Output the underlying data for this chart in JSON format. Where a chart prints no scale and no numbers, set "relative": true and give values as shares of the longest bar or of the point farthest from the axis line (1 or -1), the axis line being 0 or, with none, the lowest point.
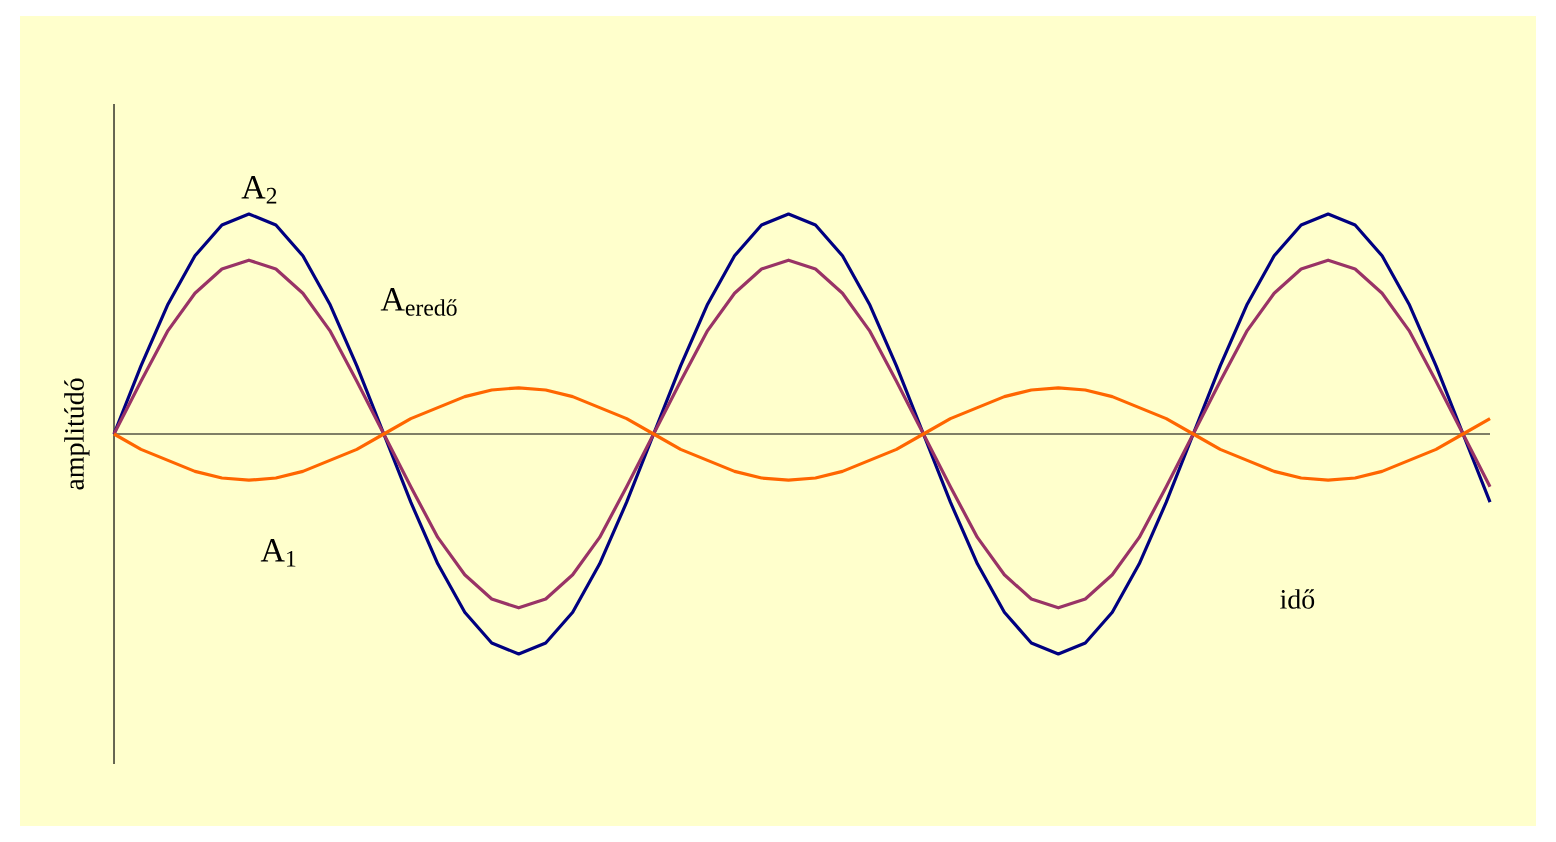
{
  "chart_data": {
    "type": "line",
    "relative": true,
    "xlabel": "idő",
    "ylabel": "amplitúdó",
    "categories": [
      null,
      null,
      null,
      null,
      null,
      null,
      null,
      null,
      null,
      null,
      null,
      null,
      null,
      null,
      null,
      null,
      null,
      null,
      null,
      null,
      null,
      null,
      null,
      null,
      null,
      null,
      null,
      null,
      null,
      null,
      null,
      null,
      null,
      null,
      null,
      null,
      null,
      null,
      null,
      null,
      null,
      null,
      null,
      null,
      null,
      null,
      null,
      null,
      null,
      null,
      null,
      null
    ],
    "series": [
      {
        "name": "A$_{2}$",
        "color": "#000080",
        "values": [
          0,
          0.31,
          0.59,
          0.81,
          0.95,
          1,
          0.95,
          0.81,
          0.59,
          0.31,
          0,
          -0.31,
          -0.59,
          -0.81,
          -0.95,
          -1,
          -0.95,
          -0.81,
          -0.59,
          -0.31,
          0,
          0.31,
          0.59,
          0.81,
          0.95,
          1,
          0.95,
          0.81,
          0.59,
          0.31,
          0,
          -0.31,
          -0.59,
          -0.81,
          -0.95,
          -1,
          -0.95,
          -0.81,
          -0.59,
          -0.31,
          0,
          0.31,
          0.59,
          0.81,
          0.95,
          1,
          0.95,
          0.81,
          0.59,
          0.31,
          0,
          -0.31
        ]
      },
      {
        "name": "A$_{eredő}$",
        "color": "#993366",
        "values": [
          0,
          0.24,
          0.47,
          0.64,
          0.75,
          0.79,
          0.75,
          0.64,
          0.47,
          0.24,
          0,
          -0.24,
          -0.47,
          -0.64,
          -0.75,
          -0.79,
          -0.75,
          -0.64,
          -0.47,
          -0.24,
          0,
          0.24,
          0.47,
          0.64,
          0.75,
          0.79,
          0.75,
          0.64,
          0.47,
          0.24,
          0,
          -0.24,
          -0.47,
          -0.64,
          -0.75,
          -0.79,
          -0.75,
          -0.64,
          -0.47,
          -0.24,
          0,
          0.24,
          0.47,
          0.64,
          0.75,
          0.79,
          0.75,
          0.64,
          0.47,
          0.24,
          0,
          -0.24
        ]
      },
      {
        "name": "A$_{1}$",
        "color": "#ff6600",
        "values": [
          0,
          -0.07,
          -0.12,
          -0.17,
          -0.2,
          -0.21,
          -0.2,
          -0.17,
          -0.12,
          -0.07,
          0,
          0.07,
          0.12,
          0.17,
          0.2,
          0.21,
          0.2,
          0.17,
          0.12,
          0.07,
          0,
          -0.07,
          -0.12,
          -0.17,
          -0.2,
          -0.21,
          -0.2,
          -0.17,
          -0.12,
          -0.07,
          0,
          0.07,
          0.12,
          0.17,
          0.2,
          0.21,
          0.2,
          0.17,
          0.12,
          0.07,
          0,
          -0.07,
          -0.12,
          -0.17,
          -0.2,
          -0.21,
          -0.2,
          -0.17,
          -0.12,
          -0.07,
          0,
          0.07
        ]
      }
    ]
  }
}
